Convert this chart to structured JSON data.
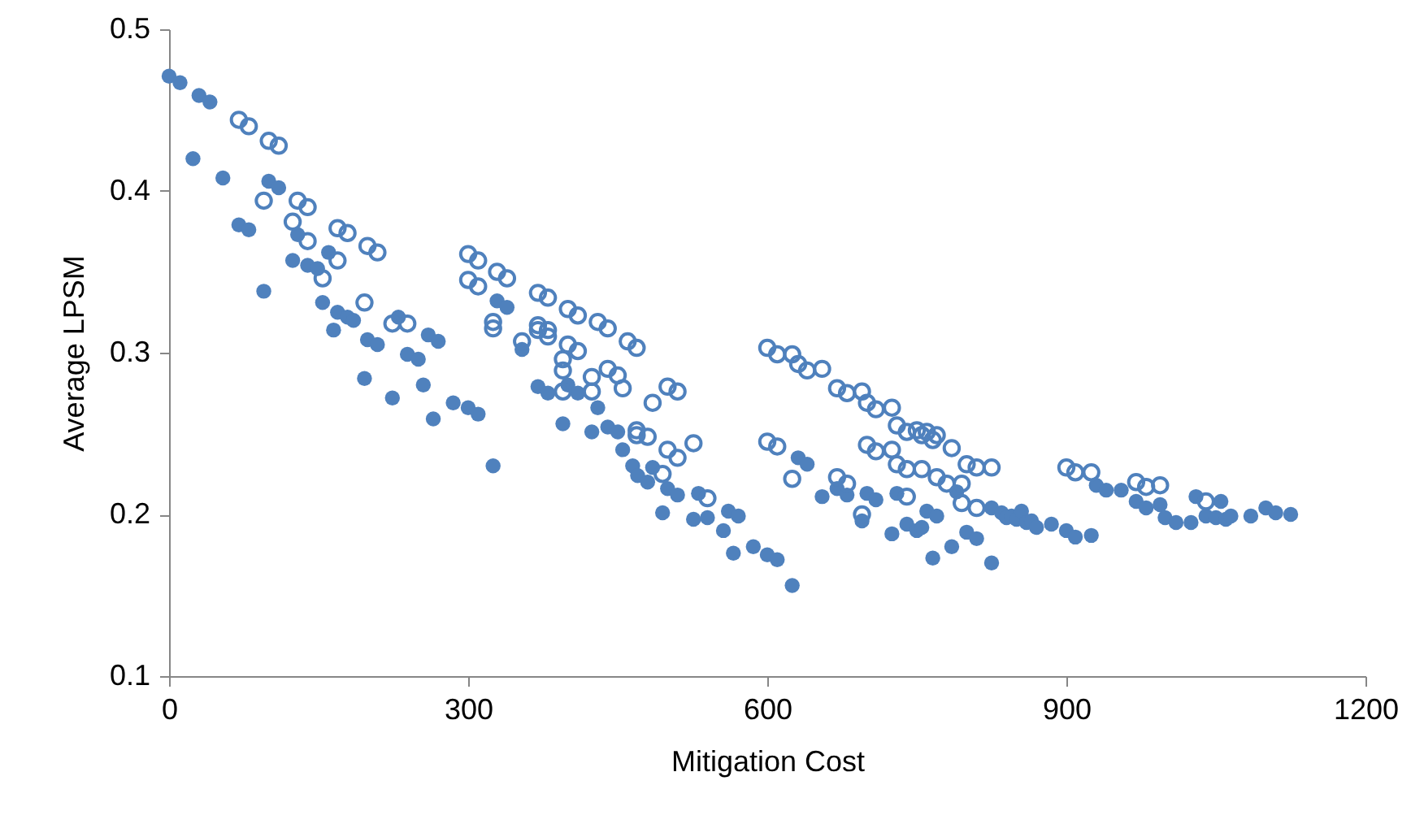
{
  "chart_data": {
    "type": "scatter",
    "xlabel": "Mitigation Cost",
    "ylabel": "Average LPSM",
    "xlim": [
      0,
      1200
    ],
    "ylim": [
      0.1,
      0.5
    ],
    "xticks": [
      0,
      300,
      600,
      900,
      1200
    ],
    "yticks": [
      0.1,
      0.2,
      0.3,
      0.4,
      0.5
    ],
    "grid": false,
    "marker": "circle",
    "series": [
      {
        "color": "#4f81bd",
        "x": [
          0,
          11,
          30,
          41,
          24,
          54,
          70,
          80,
          100,
          110,
          95,
          124,
          129,
          139,
          149,
          160,
          154,
          165,
          169,
          179,
          185,
          196,
          199,
          209,
          224,
          230,
          239,
          250,
          255,
          260,
          270,
          265,
          285,
          300,
          310,
          325,
          329,
          339,
          354,
          370,
          380,
          395,
          400,
          410,
          424,
          430,
          440,
          450,
          455,
          465,
          470,
          480,
          485,
          495,
          500,
          510,
          526,
          531,
          540,
          556,
          561,
          566,
          571,
          586,
          600,
          610,
          625,
          631,
          640,
          655,
          670,
          680,
          695,
          700,
          709,
          725,
          730,
          740,
          750,
          755,
          760,
          766,
          770,
          785,
          790,
          800,
          810,
          825,
          825,
          835,
          840,
          845,
          850,
          855,
          860,
          865,
          870,
          885,
          900,
          909,
          925,
          930,
          940,
          955,
          970,
          980,
          994,
          999,
          1010,
          1025,
          1030,
          1040,
          1050,
          1055,
          1060,
          1065,
          1085,
          1100,
          1110,
          1125
        ],
        "values": [
          0.471,
          0.467,
          0.459,
          0.455,
          0.42,
          0.408,
          0.379,
          0.376,
          0.406,
          0.402,
          0.338,
          0.357,
          0.373,
          0.354,
          0.352,
          0.362,
          0.331,
          0.314,
          0.325,
          0.322,
          0.32,
          0.284,
          0.308,
          0.305,
          0.272,
          0.322,
          0.299,
          0.296,
          0.28,
          0.311,
          0.307,
          0.259,
          0.269,
          0.266,
          0.262,
          0.23,
          0.332,
          0.328,
          0.302,
          0.279,
          0.275,
          0.256,
          0.28,
          0.275,
          0.251,
          0.266,
          0.254,
          0.251,
          0.24,
          0.23,
          0.224,
          0.22,
          0.229,
          0.201,
          0.216,
          0.212,
          0.197,
          0.213,
          0.198,
          0.19,
          0.202,
          0.176,
          0.199,
          0.18,
          0.175,
          0.172,
          0.156,
          0.235,
          0.231,
          0.211,
          0.216,
          0.212,
          0.196,
          0.213,
          0.209,
          0.188,
          0.213,
          0.194,
          0.19,
          0.192,
          0.202,
          0.173,
          0.199,
          0.18,
          0.214,
          0.189,
          0.185,
          0.17,
          0.204,
          0.201,
          0.198,
          0.199,
          0.197,
          0.202,
          0.195,
          0.196,
          0.192,
          0.194,
          0.19,
          0.186,
          0.187,
          0.218,
          0.215,
          0.215,
          0.208,
          0.204,
          0.206,
          0.198,
          0.195,
          0.195,
          0.211,
          0.199,
          0.198,
          0.208,
          0.197,
          0.199,
          0.199,
          0.204,
          0.201,
          0.2
        ]
      },
      {
        "color": "#4f81bd",
        "x": [
          70,
          80,
          100,
          110,
          95,
          124,
          129,
          139,
          139,
          154,
          169,
          179,
          169,
          196,
          199,
          209,
          224,
          239,
          300,
          310,
          300,
          310,
          325,
          325,
          329,
          339,
          354,
          370,
          380,
          370,
          370,
          380,
          380,
          395,
          395,
          395,
          400,
          410,
          400,
          410,
          424,
          424,
          430,
          440,
          440,
          450,
          455,
          460,
          469,
          469,
          469,
          480,
          485,
          500,
          510,
          500,
          510,
          495,
          526,
          540,
          600,
          610,
          625,
          631,
          640,
          655,
          600,
          610,
          625,
          670,
          680,
          695,
          700,
          709,
          725,
          730,
          740,
          750,
          755,
          760,
          766,
          770,
          785,
          670,
          680,
          700,
          709,
          725,
          730,
          740,
          755,
          770,
          780,
          795,
          695,
          740,
          800,
          810,
          825,
          795,
          810,
          900,
          909,
          925,
          970,
          980,
          994,
          1040
        ],
        "values": [
          0.444,
          0.44,
          0.431,
          0.428,
          0.394,
          0.381,
          0.394,
          0.39,
          0.369,
          0.346,
          0.377,
          0.374,
          0.357,
          0.331,
          0.366,
          0.362,
          0.318,
          0.318,
          0.361,
          0.357,
          0.345,
          0.341,
          0.319,
          0.315,
          0.35,
          0.346,
          0.307,
          0.337,
          0.334,
          0.317,
          0.314,
          0.314,
          0.31,
          0.296,
          0.289,
          0.276,
          0.305,
          0.301,
          0.327,
          0.323,
          0.285,
          0.276,
          0.319,
          0.315,
          0.29,
          0.286,
          0.278,
          0.307,
          0.303,
          0.252,
          0.249,
          0.248,
          0.269,
          0.279,
          0.276,
          0.24,
          0.235,
          0.225,
          0.244,
          0.21,
          0.303,
          0.299,
          0.299,
          0.293,
          0.289,
          0.29,
          0.245,
          0.242,
          0.222,
          0.278,
          0.275,
          0.276,
          0.269,
          0.265,
          0.266,
          0.255,
          0.251,
          0.252,
          0.249,
          0.251,
          0.246,
          0.249,
          0.241,
          0.223,
          0.219,
          0.243,
          0.239,
          0.24,
          0.231,
          0.228,
          0.228,
          0.223,
          0.219,
          0.219,
          0.2,
          0.211,
          0.231,
          0.229,
          0.229,
          0.207,
          0.204,
          0.229,
          0.226,
          0.226,
          0.22,
          0.217,
          0.218,
          0.208
        ]
      }
    ]
  }
}
